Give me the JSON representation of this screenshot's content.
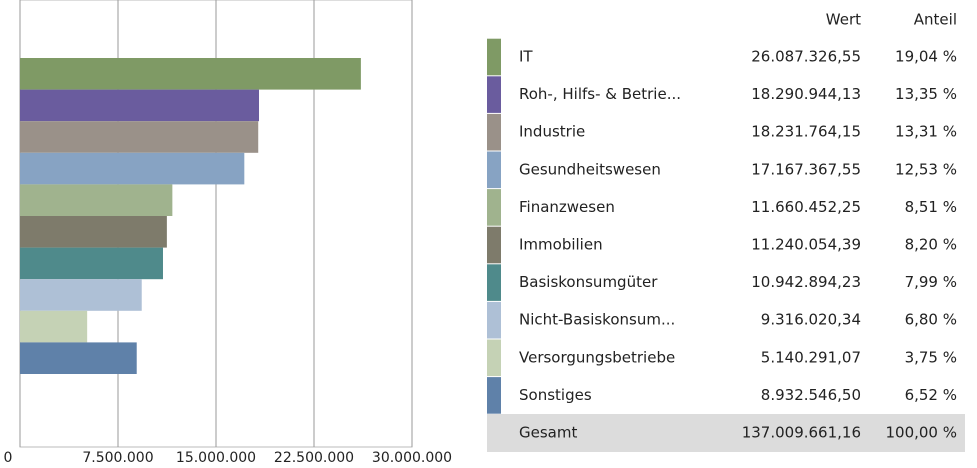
{
  "chart_data": {
    "type": "bar",
    "orientation": "horizontal",
    "categories": [
      "IT",
      "Roh-, Hilfs- & Betrie...",
      "Industrie",
      "Gesundheitswesen",
      "Finanzwesen",
      "Immobilien",
      "Basiskonsumgüter",
      "Nicht-Basiskonsum...",
      "Versorgungsbetriebe",
      "Sonstiges"
    ],
    "values": [
      26087326.55,
      18290944.13,
      18231764.15,
      17167367.55,
      11660452.25,
      11240054.39,
      10942894.23,
      9316020.34,
      5140291.07,
      8932546.5
    ],
    "value_labels": [
      "26.087.326,55",
      "18.290.944,13",
      "18.231.764,15",
      "17.167.367,55",
      "11.660.452,25",
      "11.240.054,39",
      "10.942.894,23",
      "9.316.020,34",
      "5.140.291,07",
      "8.932.546,50"
    ],
    "colors": [
      "#7f9a65",
      "#6a5c9e",
      "#9a9189",
      "#87a3c3",
      "#a0b38e",
      "#7e7b6b",
      "#4f8a8b",
      "#aec0d6",
      "#c5d2b5",
      "#5f81a9"
    ],
    "shares": [
      19.04,
      13.35,
      13.31,
      12.53,
      8.51,
      8.2,
      7.99,
      6.8,
      3.75,
      6.52
    ],
    "share_labels": [
      "19,04 %",
      "13,35 %",
      "13,31 %",
      "12,53 %",
      "8,51 %",
      "8,20 %",
      "7,99 %",
      "6,80 %",
      "3,75 %",
      "6,52 %"
    ],
    "columns": [
      "Wert",
      "Anteil"
    ],
    "total_name": "Gesamt",
    "total": 137009661.16,
    "total_label": "137.009.661,16",
    "total_share": 100,
    "total_share_label": "100,00 %",
    "xlim": [
      0,
      30000000
    ],
    "xticks": [
      0,
      {
        "value": 7500000,
        "label": "7.500.000"
      },
      {
        "value": 15000000,
        "label": "15.000.000"
      },
      {
        "value": 22500000,
        "label": "22.500.000"
      },
      {
        "value": 30000000,
        "label": "30.000.000"
      }
    ],
    "grid": true
  }
}
